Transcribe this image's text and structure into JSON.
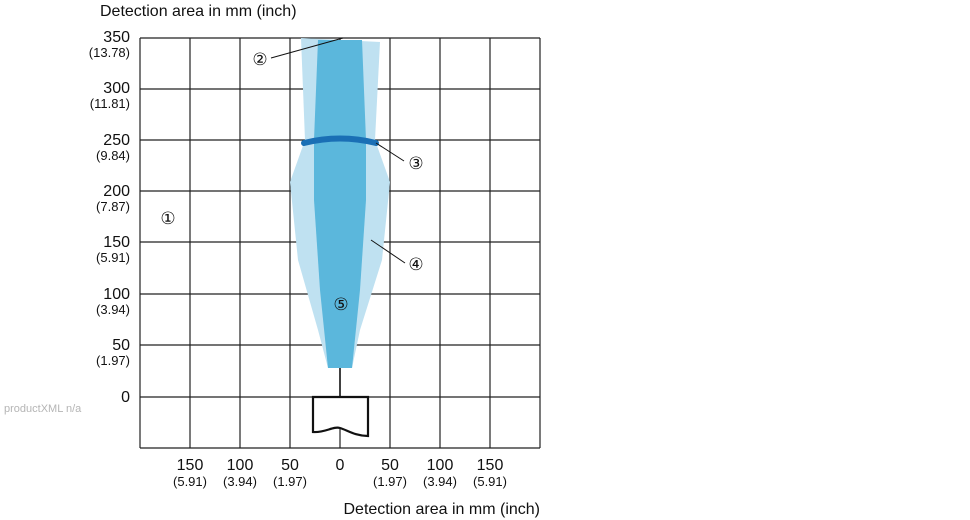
{
  "y_axis_title": "Detection area in mm (inch)",
  "x_axis_title": "Detection area in mm (inch)",
  "y_ticks": [
    {
      "main": "350",
      "sub": "(13.78)"
    },
    {
      "main": "300",
      "sub": "(11.81)"
    },
    {
      "main": "250",
      "sub": "(9.84)"
    },
    {
      "main": "200",
      "sub": "(7.87)"
    },
    {
      "main": "150",
      "sub": "(5.91)"
    },
    {
      "main": "100",
      "sub": "(3.94)"
    },
    {
      "main": "50",
      "sub": "(1.97)"
    },
    {
      "main": "0",
      "sub": ""
    }
  ],
  "x_ticks": [
    {
      "main": "150",
      "sub": "(5.91)"
    },
    {
      "main": "100",
      "sub": "(3.94)"
    },
    {
      "main": "50",
      "sub": "(1.97)"
    },
    {
      "main": "0",
      "sub": ""
    },
    {
      "main": "50",
      "sub": "(1.97)"
    },
    {
      "main": "100",
      "sub": "(3.94)"
    },
    {
      "main": "150",
      "sub": "(5.91)"
    }
  ],
  "callouts": {
    "c1": "①",
    "c2": "②",
    "c3": "③",
    "c4": "④",
    "c5": "⑤"
  },
  "watermark": "productXML n/a",
  "colors": {
    "outer_zone": "#bfe1f1",
    "inner_zone": "#5bb7dc",
    "ring": "#1a6fb5",
    "grid": "#222222"
  }
}
